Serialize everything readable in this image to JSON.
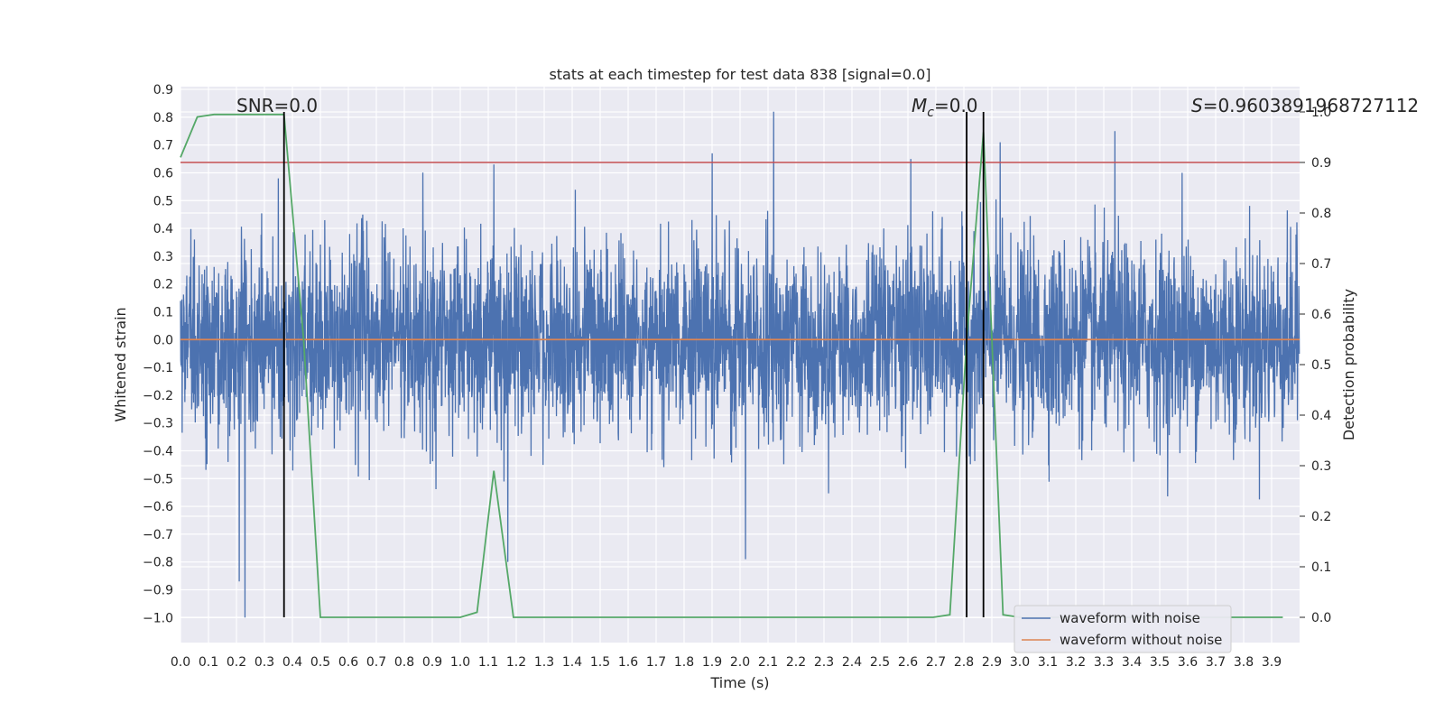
{
  "chart_data": {
    "type": "line",
    "title": "stats at each timestep for test data 838 [signal=0.0]",
    "xlabel": "Time (s)",
    "ylabel": "Whitened strain",
    "ylabel_right": "Detection probability",
    "xlim": [
      0.0,
      4.0
    ],
    "ylim": [
      -1.09,
      0.91
    ],
    "ylim_right": [
      -0.05,
      1.05
    ],
    "x_ticks": [
      "0.0",
      "0.1",
      "0.2",
      "0.3",
      "0.4",
      "0.5",
      "0.6",
      "0.7",
      "0.8",
      "0.9",
      "1.0",
      "1.1",
      "1.2",
      "1.3",
      "1.4",
      "1.5",
      "1.6",
      "1.7",
      "1.8",
      "1.9",
      "2.0",
      "2.1",
      "2.2",
      "2.3",
      "2.4",
      "2.5",
      "2.6",
      "2.7",
      "2.8",
      "2.9",
      "3.0",
      "3.1",
      "3.2",
      "3.3",
      "3.4",
      "3.5",
      "3.6",
      "3.7",
      "3.8",
      "3.9"
    ],
    "y_ticks": [
      "0.9",
      "0.8",
      "0.7",
      "0.6",
      "0.5",
      "0.4",
      "0.3",
      "0.2",
      "0.1",
      "0.0",
      "−0.1",
      "−0.2",
      "−0.3",
      "−0.4",
      "−0.5",
      "−0.6",
      "−0.7",
      "−0.8",
      "−0.9",
      "−1.0"
    ],
    "y_right_ticks": [
      "1.0",
      "0.9",
      "0.8",
      "0.7",
      "0.6",
      "0.5",
      "0.4",
      "0.3",
      "0.2",
      "0.1",
      "0.0"
    ],
    "annotations": {
      "snr": "SNR=0.0",
      "mc_symbol": "M",
      "mc_sub": "c",
      "mc_value": "=0.0",
      "s_symbol": "S",
      "s_value": "=0.9603891968727112"
    },
    "vlines_x": [
      0.37,
      2.81,
      2.87
    ],
    "threshold_prob": 0.9,
    "series": [
      {
        "name": "waveform with noise",
        "color": "#4c72b0",
        "noise_std": 0.17,
        "duration": 4.0,
        "sample_rate": 1024,
        "spikes": [
          [
            0.05,
            0.36
          ],
          [
            0.21,
            -0.87
          ],
          [
            0.23,
            -0.75
          ],
          [
            0.23,
            0.57
          ],
          [
            0.23,
            -1.0
          ],
          [
            0.35,
            0.58
          ],
          [
            1.12,
            0.63
          ],
          [
            1.17,
            -0.8
          ],
          [
            1.9,
            0.67
          ],
          [
            2.02,
            -0.79
          ],
          [
            2.12,
            0.82
          ],
          [
            2.61,
            0.65
          ],
          [
            2.87,
            0.76
          ],
          [
            2.93,
            0.71
          ],
          [
            3.34,
            0.75
          ],
          [
            3.58,
            0.6
          ]
        ]
      },
      {
        "name": "waveform without noise",
        "color": "#dd8452",
        "values_const": 0.0
      },
      {
        "name": "detection probability",
        "color": "#55a868",
        "axis": "right",
        "x": [
          0.0,
          0.06,
          0.12,
          0.19,
          0.25,
          0.31,
          0.37,
          0.44,
          0.5,
          0.56,
          0.62,
          0.69,
          0.75,
          0.81,
          0.87,
          0.94,
          1.0,
          1.06,
          1.12,
          1.19,
          1.25,
          1.31,
          1.37,
          1.44,
          1.5,
          1.56,
          1.62,
          1.69,
          1.75,
          1.81,
          1.87,
          1.94,
          2.0,
          2.06,
          2.12,
          2.19,
          2.25,
          2.31,
          2.37,
          2.44,
          2.5,
          2.56,
          2.62,
          2.69,
          2.75,
          2.81,
          2.87,
          2.94,
          3.0,
          3.06,
          3.12,
          3.19,
          3.25,
          3.31,
          3.37,
          3.44,
          3.5,
          3.56,
          3.62,
          3.69,
          3.75,
          3.81,
          3.87,
          3.94
        ],
        "values": [
          0.91,
          0.99,
          0.995,
          0.995,
          0.995,
          0.995,
          0.995,
          0.55,
          0.0,
          0.0,
          0.0,
          0.0,
          0.0,
          0.0,
          0.0,
          0.0,
          0.0,
          0.01,
          0.29,
          0.0,
          0.0,
          0.0,
          0.0,
          0.0,
          0.0,
          0.0,
          0.0,
          0.0,
          0.0,
          0.0,
          0.0,
          0.0,
          0.0,
          0.0,
          0.0,
          0.0,
          0.0,
          0.0,
          0.0,
          0.0,
          0.0,
          0.0,
          0.0,
          0.0,
          0.005,
          0.55,
          0.96,
          0.005,
          0.0,
          0.0,
          0.0,
          0.0,
          0.0,
          0.0,
          0.0,
          0.0,
          0.0,
          0.0,
          0.0,
          0.0,
          0.0,
          0.0,
          0.0,
          0.0
        ]
      }
    ],
    "legend": {
      "placement": "bottom-right",
      "items": [
        "waveform with noise",
        "waveform without noise"
      ]
    },
    "colors": {
      "background": "#eaeaf2",
      "grid": "#ffffff",
      "threshold": "#c44e52",
      "vline": "#000000"
    }
  }
}
